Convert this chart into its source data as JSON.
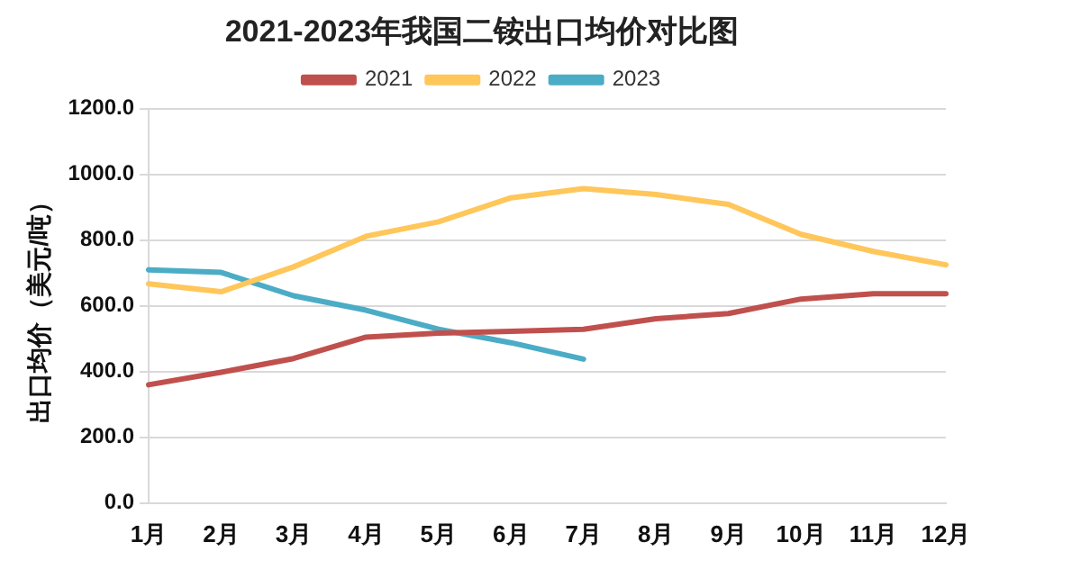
{
  "chart_data": {
    "type": "line",
    "title": "2021-2023年我国二铵出口均价对比图",
    "ylabel": "出口均价（美元/吨）",
    "categories": [
      "1月",
      "2月",
      "3月",
      "4月",
      "5月",
      "6月",
      "7月",
      "8月",
      "9月",
      "10月",
      "11月",
      "12月"
    ],
    "series": [
      {
        "name": "2021",
        "color": "#c0504d",
        "values": [
          360,
          398,
          440,
          505,
          517,
          523,
          529,
          561,
          577,
          621,
          637,
          637
        ]
      },
      {
        "name": "2022",
        "color": "#ffc65a",
        "values": [
          667,
          643,
          719,
          812,
          856,
          929,
          957,
          939,
          909,
          818,
          766,
          725
        ]
      },
      {
        "name": "2023",
        "color": "#4bacc6",
        "values": [
          710,
          702,
          631,
          587,
          529,
          488,
          438,
          null,
          null,
          null,
          null,
          null
        ]
      }
    ],
    "ylim": [
      0,
      1200
    ],
    "yticks": [
      {
        "value": 0,
        "label": "0.0"
      },
      {
        "value": 200,
        "label": "200.0"
      },
      {
        "value": 400,
        "label": "400.0"
      },
      {
        "value": 600,
        "label": "600.0"
      },
      {
        "value": 800,
        "label": "800.0"
      },
      {
        "value": 1000,
        "label": "1000.0"
      },
      {
        "value": 1200,
        "label": "1200.0"
      }
    ],
    "grid": "y",
    "legend": "top",
    "marker": "none",
    "line_style": "solid"
  }
}
